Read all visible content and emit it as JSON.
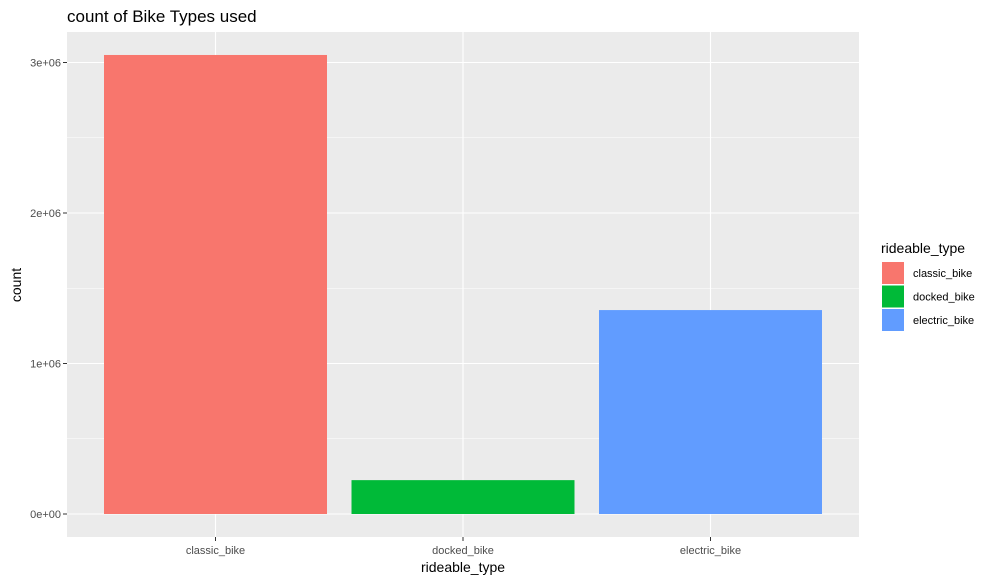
{
  "chart_data": {
    "type": "bar",
    "title": "count of Bike Types used",
    "xlabel": "rideable_type",
    "ylabel": "count",
    "categories": [
      "classic_bike",
      "docked_bike",
      "electric_bike"
    ],
    "values": [
      3050000,
      225000,
      1355000
    ],
    "ylim": [
      0,
      3200000
    ],
    "yticks": [
      0,
      1000000,
      2000000,
      3000000
    ],
    "ytick_labels": [
      "0e+00",
      "1e+06",
      "2e+06",
      "3e+06"
    ],
    "grid": true,
    "legend": {
      "title": "rideable_type",
      "placement": "right",
      "entries": [
        "classic_bike",
        "docked_bike",
        "electric_bike"
      ]
    },
    "colors": {
      "classic_bike": "#F8766D",
      "docked_bike": "#00BA38",
      "electric_bike": "#619CFF",
      "panel_background": "#EBEBEB",
      "grid": "#FFFFFF"
    }
  }
}
